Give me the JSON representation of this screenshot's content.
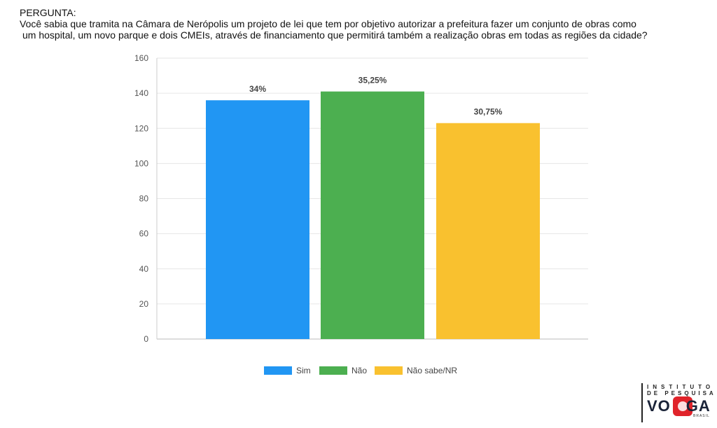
{
  "question": {
    "heading": "PERGUNTA:",
    "line1": "Você sabia que tramita na Câmara de Nerópolis um projeto de lei que tem por objetivo autorizar a prefeitura fazer um conjunto de obras como",
    "line2": "um hospital, um novo parque e dois CMEIs, através de financiamento que permitirá também a realização obras em todas as regiões da cidade?"
  },
  "chart_data": {
    "type": "bar",
    "title": "",
    "xlabel": "",
    "ylabel": "",
    "categories": [
      "Sim",
      "Não",
      "Não sabe/NR"
    ],
    "values": [
      136,
      141,
      123
    ],
    "data_labels": [
      "34%",
      "35,25%",
      "30,75%"
    ],
    "colors": [
      "#2196f3",
      "#4caf50",
      "#f9c12f"
    ],
    "ylim": [
      0,
      160
    ],
    "yticks": [
      0,
      20,
      40,
      60,
      80,
      100,
      120,
      140,
      160
    ],
    "grid": true,
    "legend": {
      "placement": "bottom",
      "items": [
        "Sim",
        "Não",
        "Não sabe/NR"
      ]
    }
  },
  "logo": {
    "line1": "INSTITUTO",
    "line2": "DE PESQUISA",
    "word_left": "VO",
    "word_right": "GA",
    "country": "BRASIL"
  }
}
